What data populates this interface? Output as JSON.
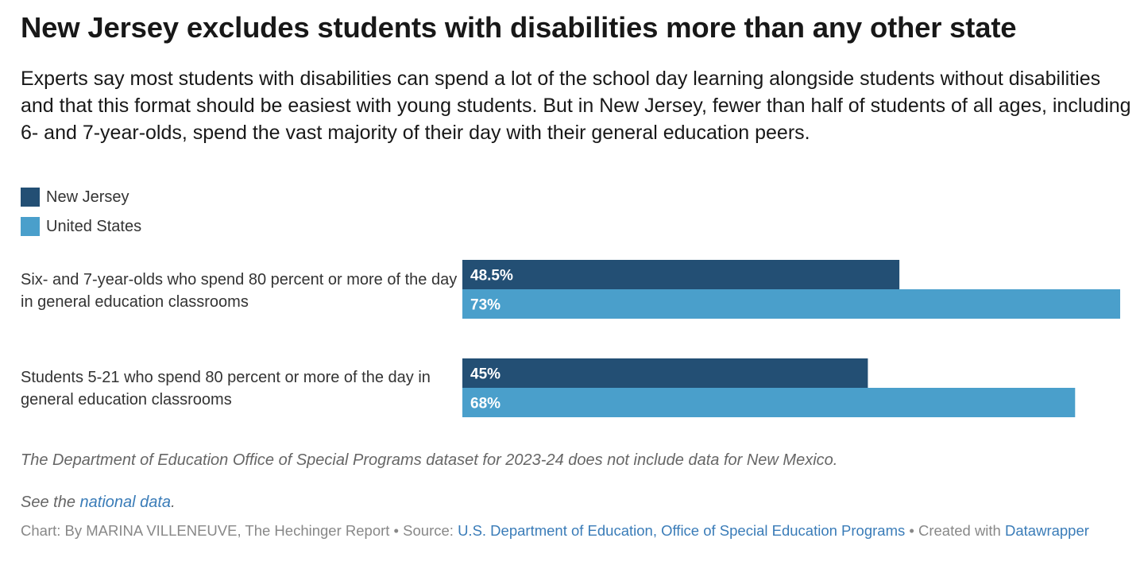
{
  "header": {
    "title": "New Jersey excludes students with disabilities more than any other state",
    "subtitle": "Experts say most students with disabilities can spend a lot of the school day learning alongside students without disabilities and that this format should be easiest with young students. But in New Jersey, fewer than half of students of all ages, including 6- and 7-year-olds, spend the vast majority of their day with their general education peers."
  },
  "legend": [
    {
      "label": "New Jersey",
      "color": "#234f74"
    },
    {
      "label": "United States",
      "color": "#4a9fcb"
    }
  ],
  "chart_data": {
    "type": "bar",
    "orientation": "horizontal",
    "grouped": true,
    "categories": [
      "Six- and 7-year-olds who spend 80 percent or more of the day in general education classrooms",
      "Students 5-21 who spend 80 percent or more of the day in general education classrooms"
    ],
    "series": [
      {
        "name": "New Jersey",
        "color": "#234f74",
        "values": [
          48.5,
          45
        ],
        "labels": [
          "48.5%",
          "45%"
        ]
      },
      {
        "name": "United States",
        "color": "#4a9fcb",
        "values": [
          73,
          68
        ],
        "labels": [
          "73%",
          "68%"
        ]
      }
    ],
    "xlim": [
      0,
      73
    ],
    "grid": false,
    "legend_position": "top-left"
  },
  "notes": {
    "note": "The Department of Education Office of Special Programs dataset for 2023-24 does not include data for New Mexico.",
    "see_prefix": "See the ",
    "see_link": "national data",
    "see_suffix": "."
  },
  "footer": {
    "chart_credit": "Chart: By MARINA VILLENEUVE, The Hechinger Report",
    "sep1": " • Source: ",
    "source_link": "U.S. Department of Education, Office of Special Education Programs",
    "sep2": " • Created with ",
    "tool_link": "Datawrapper"
  }
}
